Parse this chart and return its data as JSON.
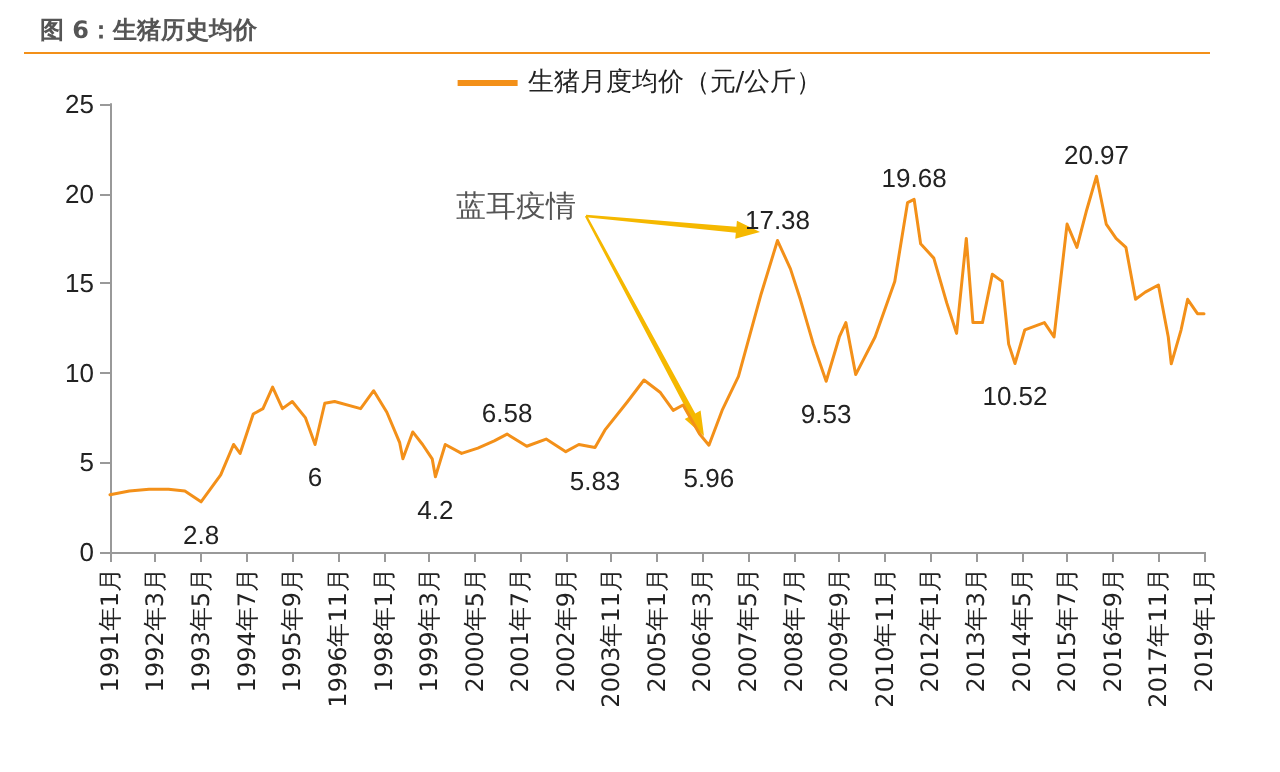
{
  "chart_data": {
    "type": "line",
    "title": "图 6：生猪历史均价",
    "x": [
      "1991-01",
      "1991-07",
      "1992-01",
      "1992-07",
      "1992-12",
      "1993-05",
      "1993-11",
      "1994-03",
      "1994-05",
      "1994-09",
      "1994-12",
      "1995-03",
      "1995-06",
      "1995-09",
      "1996-01",
      "1996-04",
      "1996-07",
      "1996-10",
      "1997-06",
      "1997-10",
      "1998-02",
      "1998-06",
      "1998-07",
      "1998-10",
      "1999-01",
      "1999-04",
      "1999-05",
      "1999-08",
      "2000-01",
      "2000-06",
      "2000-11",
      "2001-03",
      "2001-09",
      "2002-03",
      "2002-09",
      "2003-01",
      "2003-06",
      "2003-09",
      "2004-04",
      "2004-09",
      "2005-02",
      "2005-06",
      "2005-09",
      "2006-02",
      "2006-05",
      "2006-09",
      "2007-02",
      "2007-09",
      "2008-02",
      "2008-06",
      "2008-09",
      "2009-01",
      "2009-05",
      "2009-09",
      "2009-11",
      "2010-02",
      "2010-08",
      "2011-02",
      "2011-06",
      "2011-08",
      "2011-10",
      "2012-02",
      "2012-06",
      "2012-09",
      "2012-12",
      "2013-02",
      "2013-05",
      "2013-08",
      "2013-11",
      "2014-01",
      "2014-03",
      "2014-06",
      "2014-12",
      "2015-03",
      "2015-07",
      "2015-10",
      "2016-01",
      "2016-04",
      "2016-07",
      "2016-10",
      "2017-01",
      "2017-04",
      "2017-07",
      "2017-11",
      "2018-02",
      "2018-03",
      "2018-06",
      "2018-08",
      "2018-11",
      "2019-01"
    ],
    "series": [
      {
        "name": "生猪月度均价（元/公斤）",
        "color": "#f39019",
        "values": [
          3.2,
          3.4,
          3.5,
          3.5,
          3.4,
          2.8,
          4.3,
          6.0,
          5.5,
          7.7,
          8.0,
          9.2,
          8.0,
          8.4,
          7.5,
          6.0,
          8.3,
          8.4,
          8.0,
          9.0,
          7.8,
          6.1,
          5.2,
          6.7,
          6.0,
          5.2,
          4.2,
          6.0,
          5.5,
          5.8,
          6.2,
          6.58,
          5.9,
          6.3,
          5.6,
          6.0,
          5.83,
          6.8,
          8.4,
          9.6,
          8.9,
          7.9,
          8.2,
          6.6,
          5.96,
          7.9,
          9.8,
          14.4,
          17.38,
          15.8,
          14.1,
          11.6,
          9.53,
          12.0,
          12.8,
          9.9,
          12.0,
          15.1,
          19.5,
          19.68,
          17.2,
          16.4,
          13.9,
          12.2,
          17.5,
          12.8,
          12.8,
          15.5,
          15.1,
          11.6,
          10.52,
          12.4,
          12.8,
          12.0,
          18.3,
          17.0,
          19.1,
          20.97,
          18.3,
          17.5,
          17.0,
          14.1,
          14.5,
          14.9,
          12.0,
          10.5,
          12.4,
          14.1,
          13.3,
          13.3
        ],
        "value_labels": [
          null,
          null,
          null,
          null,
          null,
          "2.8",
          null,
          null,
          null,
          null,
          null,
          null,
          null,
          null,
          null,
          "6",
          null,
          null,
          null,
          null,
          null,
          null,
          null,
          null,
          null,
          null,
          "4.2",
          null,
          null,
          null,
          null,
          "6.58",
          null,
          null,
          null,
          null,
          "5.83",
          null,
          null,
          null,
          null,
          null,
          null,
          null,
          "5.96",
          null,
          null,
          null,
          "17.38",
          null,
          null,
          null,
          "9.53",
          null,
          null,
          null,
          null,
          null,
          null,
          "19.68",
          null,
          null,
          null,
          null,
          null,
          null,
          null,
          null,
          null,
          null,
          "10.52",
          null,
          null,
          null,
          null,
          null,
          null,
          "20.97",
          null,
          null,
          null,
          null,
          null,
          null,
          null,
          null,
          null,
          null,
          null,
          null
        ]
      }
    ],
    "xlim": [
      "1991-01",
      "2019-01"
    ],
    "xticks": [
      {
        "value": "1991-01",
        "label": "1991年1月"
      },
      {
        "value": "1992-03",
        "label": "1992年3月"
      },
      {
        "value": "1993-05",
        "label": "1993年5月"
      },
      {
        "value": "1994-07",
        "label": "1994年7月"
      },
      {
        "value": "1995-09",
        "label": "1995年9月"
      },
      {
        "value": "1996-11",
        "label": "1996年11月"
      },
      {
        "value": "1998-01",
        "label": "1998年1月"
      },
      {
        "value": "1999-03",
        "label": "1999年3月"
      },
      {
        "value": "2000-05",
        "label": "2000年5月"
      },
      {
        "value": "2001-07",
        "label": "2001年7月"
      },
      {
        "value": "2002-09",
        "label": "2002年9月"
      },
      {
        "value": "2003-11",
        "label": "2003年11月"
      },
      {
        "value": "2005-01",
        "label": "2005年1月"
      },
      {
        "value": "2006-03",
        "label": "2006年3月"
      },
      {
        "value": "2007-05",
        "label": "2007年5月"
      },
      {
        "value": "2008-07",
        "label": "2008年7月"
      },
      {
        "value": "2009-09",
        "label": "2009年9月"
      },
      {
        "value": "2010-11",
        "label": "2010年11月"
      },
      {
        "value": "2012-01",
        "label": "2012年1月"
      },
      {
        "value": "2013-03",
        "label": "2013年3月"
      },
      {
        "value": "2014-05",
        "label": "2014年5月"
      },
      {
        "value": "2015-07",
        "label": "2015年7月"
      },
      {
        "value": "2016-09",
        "label": "2016年9月"
      },
      {
        "value": "2017-11",
        "label": "2017年11月"
      },
      {
        "value": "2019-01",
        "label": "2019年1月"
      }
    ],
    "ylim": [
      0,
      25
    ],
    "yticks": [
      0,
      5,
      10,
      15,
      20,
      25
    ],
    "annotations": [
      "蓝耳疫情"
    ],
    "grid": false,
    "legend": "top",
    "marker": "none",
    "line_style": "solid"
  }
}
